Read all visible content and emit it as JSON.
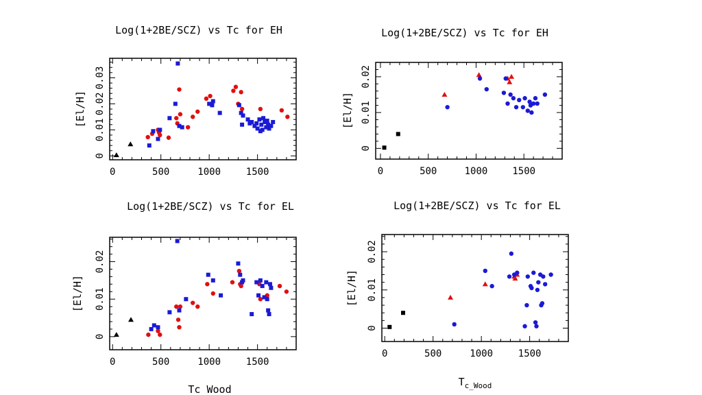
{
  "colors": {
    "red": "#e01010",
    "blue": "#1a1ad6",
    "black": "#000000"
  },
  "chart_data": [
    {
      "type": "scatter",
      "title": "Log(1+2BE/SCZ) vs Tc for EH",
      "xlabel": "",
      "ylabel": "[El/H]",
      "xlim": [
        -30,
        1900
      ],
      "ylim": [
        -0.0015,
        0.0375
      ],
      "xticks": [
        0,
        500,
        1000,
        1500
      ],
      "yticks": [
        0,
        0.01,
        0.02,
        0.03
      ],
      "ytick_labels": [
        "0",
        "0.01",
        "0.02",
        "0.03"
      ],
      "grid": false,
      "series": [
        {
          "name": "black triangles",
          "marker": "triangle",
          "color": "black",
          "x": [
            40,
            185
          ],
          "y": [
            0.0003,
            0.0045
          ]
        },
        {
          "name": "red circles",
          "marker": "circle",
          "color": "red",
          "x": [
            365,
            410,
            470,
            480,
            490,
            580,
            660,
            670,
            690,
            700,
            780,
            830,
            880,
            970,
            1010,
            1030,
            1250,
            1275,
            1300,
            1330,
            1340,
            1530,
            1750,
            1810
          ],
          "y": [
            0.0072,
            0.0085,
            0.01,
            0.009,
            0.008,
            0.007,
            0.0145,
            0.0125,
            0.0255,
            0.016,
            0.011,
            0.015,
            0.017,
            0.022,
            0.023,
            0.0195,
            0.025,
            0.0265,
            0.02,
            0.0245,
            0.018,
            0.018,
            0.0175,
            0.015
          ]
        },
        {
          "name": "blue squares",
          "marker": "square",
          "color": "blue",
          "x": [
            380,
            420,
            470,
            490,
            590,
            650,
            675,
            690,
            720,
            1000,
            1030,
            1040,
            1110,
            1310,
            1330,
            1340,
            1350,
            1400,
            1420,
            1440,
            1470,
            1490,
            1500,
            1520,
            1530,
            1540,
            1550,
            1560,
            1575,
            1590,
            1600,
            1610,
            1620,
            1640,
            1660
          ],
          "y": [
            0.004,
            0.0095,
            0.0065,
            0.01,
            0.0145,
            0.02,
            0.0355,
            0.0115,
            0.011,
            0.02,
            0.0195,
            0.021,
            0.0165,
            0.0195,
            0.0165,
            0.012,
            0.0155,
            0.014,
            0.0125,
            0.013,
            0.0115,
            0.0125,
            0.0105,
            0.014,
            0.0095,
            0.012,
            0.01,
            0.0145,
            0.013,
            0.011,
            0.0135,
            0.012,
            0.0105,
            0.0115,
            0.013
          ]
        }
      ]
    },
    {
      "type": "scatter",
      "title": "Log(1+2BE/SCZ) vs Tc for EH",
      "xlabel": "",
      "ylabel": "[El/H]",
      "xlim": [
        -50,
        1900
      ],
      "ylim": [
        -0.003,
        0.024
      ],
      "xticks": [
        0,
        500,
        1000,
        1500
      ],
      "yticks": [
        0,
        0.01,
        0.02
      ],
      "ytick_labels": [
        "0",
        "0.01",
        "0.02"
      ],
      "grid": false,
      "series": [
        {
          "name": "black squares",
          "marker": "square",
          "color": "black",
          "x": [
            40,
            185
          ],
          "y": [
            0.0002,
            0.004
          ]
        },
        {
          "name": "red triangles",
          "marker": "triangle",
          "color": "red",
          "x": [
            670,
            1030,
            1330,
            1350,
            1370
          ],
          "y": [
            0.015,
            0.0205,
            0.0195,
            0.0185,
            0.02
          ]
        },
        {
          "name": "blue circles",
          "marker": "circle",
          "color": "blue",
          "x": [
            700,
            1040,
            1110,
            1290,
            1310,
            1330,
            1360,
            1390,
            1420,
            1450,
            1490,
            1510,
            1540,
            1560,
            1570,
            1580,
            1600,
            1620,
            1640,
            1720
          ],
          "y": [
            0.0115,
            0.0195,
            0.0165,
            0.0155,
            0.0195,
            0.0125,
            0.015,
            0.014,
            0.0115,
            0.0135,
            0.0115,
            0.014,
            0.0105,
            0.013,
            0.012,
            0.01,
            0.0125,
            0.014,
            0.0125,
            0.015
          ]
        }
      ]
    },
    {
      "type": "scatter",
      "title": "Log(1+2BE/SCZ) vs Tc for EL",
      "xlabel": "Tc_Wood",
      "ylabel": "[El/H]",
      "xlim": [
        -30,
        1900
      ],
      "ylim": [
        -0.0035,
        0.0265
      ],
      "xticks": [
        0,
        500,
        1000,
        1500
      ],
      "yticks": [
        0,
        0.01,
        0.02
      ],
      "ytick_labels": [
        "0",
        "0.01",
        "0.02"
      ],
      "grid": false,
      "series": [
        {
          "name": "black triangles",
          "marker": "triangle",
          "color": "black",
          "x": [
            40,
            190
          ],
          "y": [
            0.0005,
            0.0045
          ]
        },
        {
          "name": "red circles",
          "marker": "circle",
          "color": "red",
          "x": [
            370,
            470,
            490,
            660,
            680,
            690,
            700,
            830,
            880,
            980,
            1040,
            1240,
            1310,
            1320,
            1330,
            1520,
            1530,
            1600,
            1730,
            1800
          ],
          "y": [
            0.0005,
            0.0015,
            0.0005,
            0.008,
            0.0045,
            0.0025,
            0.008,
            0.009,
            0.008,
            0.014,
            0.0115,
            0.0145,
            0.0175,
            0.014,
            0.0135,
            0.014,
            0.01,
            0.011,
            0.0135,
            0.012
          ]
        },
        {
          "name": "blue squares",
          "marker": "square",
          "color": "blue",
          "x": [
            400,
            430,
            470,
            590,
            670,
            690,
            760,
            990,
            1040,
            1120,
            1300,
            1320,
            1340,
            1350,
            1440,
            1490,
            1510,
            1530,
            1550,
            1570,
            1590,
            1600,
            1610,
            1620,
            1630,
            1640
          ],
          "y": [
            0.002,
            0.003,
            0.0025,
            0.0065,
            0.0255,
            0.007,
            0.01,
            0.0165,
            0.015,
            0.011,
            0.0195,
            0.0165,
            0.0145,
            0.015,
            0.006,
            0.0145,
            0.011,
            0.015,
            0.0135,
            0.0105,
            0.0145,
            0.01,
            0.007,
            0.006,
            0.014,
            0.013
          ]
        }
      ]
    },
    {
      "type": "scatter",
      "title": "Log(1+2BE/SCZ) vs Tc for EL",
      "xlabel": "Tc_Wood",
      "ylabel": "[El/H]",
      "xlim": [
        -30,
        1900
      ],
      "ylim": [
        -0.0035,
        0.0245
      ],
      "xticks": [
        0,
        500,
        1000,
        1500
      ],
      "yticks": [
        0,
        0.01,
        0.02
      ],
      "ytick_labels": [
        "0",
        "0.01",
        "0.02"
      ],
      "grid": false,
      "series": [
        {
          "name": "black squares",
          "marker": "square",
          "color": "black",
          "x": [
            50,
            190
          ],
          "y": [
            0.0003,
            0.004
          ]
        },
        {
          "name": "red triangles",
          "marker": "triangle",
          "color": "red",
          "x": [
            680,
            1040,
            1340,
            1350,
            1370
          ],
          "y": [
            0.008,
            0.0115,
            0.0135,
            0.013,
            0.014
          ]
        },
        {
          "name": "blue circles",
          "marker": "circle",
          "color": "blue",
          "x": [
            720,
            1040,
            1110,
            1290,
            1310,
            1340,
            1370,
            1450,
            1470,
            1480,
            1510,
            1520,
            1540,
            1560,
            1570,
            1580,
            1590,
            1610,
            1620,
            1630,
            1640,
            1660,
            1720
          ],
          "y": [
            0.001,
            0.015,
            0.011,
            0.0135,
            0.0195,
            0.014,
            0.0145,
            0.0005,
            0.006,
            0.0135,
            0.011,
            0.0105,
            0.0145,
            0.0015,
            0.0005,
            0.01,
            0.012,
            0.014,
            0.006,
            0.0065,
            0.0135,
            0.0115,
            0.014
          ]
        }
      ]
    }
  ]
}
